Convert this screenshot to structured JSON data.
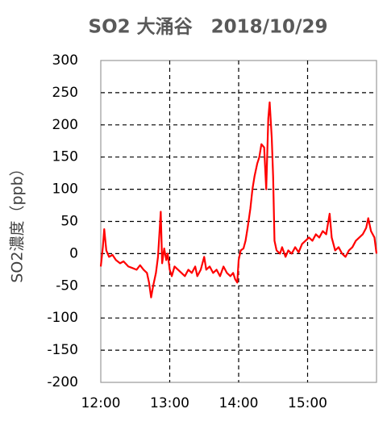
{
  "chart_data": {
    "type": "line",
    "title": "SO2 大涌谷　2018/10/29",
    "y_label": "SO2濃度（ppb）",
    "x": [
      12.0,
      12.03,
      12.05,
      12.08,
      12.12,
      12.17,
      12.22,
      12.28,
      12.33,
      12.4,
      12.45,
      12.52,
      12.57,
      12.62,
      12.67,
      12.7,
      12.73,
      12.76,
      12.8,
      12.83,
      12.87,
      12.89,
      12.92,
      12.95,
      12.97,
      13.0,
      13.03,
      13.07,
      13.12,
      13.17,
      13.22,
      13.27,
      13.32,
      13.37,
      13.4,
      13.45,
      13.5,
      13.53,
      13.58,
      13.63,
      13.68,
      13.73,
      13.78,
      13.83,
      13.88,
      13.92,
      13.95,
      13.98,
      14.0,
      14.03,
      14.07,
      14.1,
      14.13,
      14.17,
      14.2,
      14.23,
      14.27,
      14.3,
      14.33,
      14.37,
      14.4,
      14.43,
      14.45,
      14.48,
      14.5,
      14.52,
      14.55,
      14.6,
      14.63,
      14.68,
      14.72,
      14.77,
      14.82,
      14.87,
      14.92,
      14.97,
      15.02,
      15.07,
      15.12,
      15.17,
      15.22,
      15.27,
      15.32,
      15.35,
      15.4,
      15.45,
      15.5,
      15.55,
      15.6,
      15.65,
      15.7,
      15.75,
      15.8,
      15.85,
      15.88,
      15.92,
      15.97,
      16.0
    ],
    "values": [
      -20,
      10,
      38,
      5,
      -5,
      -2,
      -10,
      -15,
      -12,
      -20,
      -22,
      -25,
      -18,
      -25,
      -30,
      -45,
      -68,
      -50,
      -30,
      -5,
      65,
      -15,
      8,
      -10,
      0,
      -25,
      -35,
      -20,
      -25,
      -30,
      -35,
      -25,
      -30,
      -20,
      -35,
      -25,
      -5,
      -25,
      -20,
      -30,
      -25,
      -35,
      -20,
      -30,
      -35,
      -30,
      -40,
      -45,
      -10,
      5,
      8,
      20,
      40,
      70,
      100,
      120,
      140,
      150,
      170,
      165,
      100,
      210,
      235,
      180,
      120,
      20,
      5,
      0,
      10,
      -5,
      5,
      0,
      10,
      2,
      15,
      20,
      25,
      20,
      30,
      25,
      35,
      30,
      62,
      25,
      5,
      10,
      0,
      -5,
      5,
      10,
      20,
      25,
      30,
      40,
      55,
      35,
      25,
      0
    ],
    "color": "#ff0000",
    "xlim": [
      12,
      16
    ],
    "xticks": [
      {
        "value": 12,
        "label": "12:00"
      },
      {
        "value": 13,
        "label": "13:00"
      },
      {
        "value": 14,
        "label": "14:00"
      },
      {
        "value": 15,
        "label": "15:00"
      }
    ],
    "ylim": [
      -200,
      300
    ],
    "yticks": [
      -200,
      -150,
      -100,
      -50,
      0,
      50,
      100,
      150,
      200,
      250,
      300
    ],
    "grid": true
  }
}
